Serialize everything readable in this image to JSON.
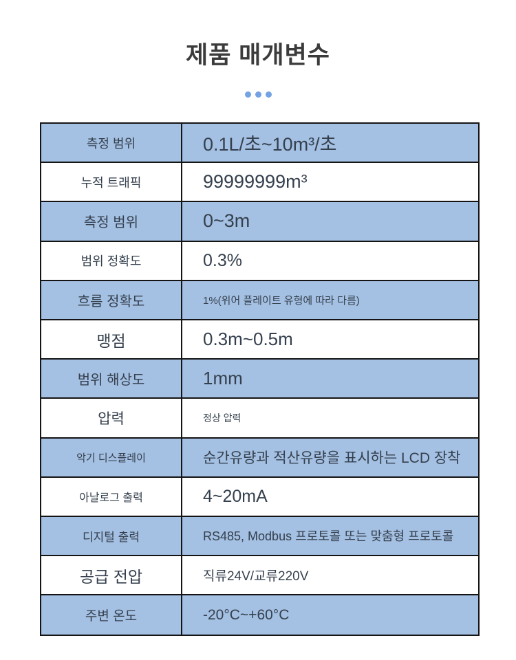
{
  "page": {
    "title": "제품 매개변수"
  },
  "colors": {
    "row_blue": "#a4c0e2",
    "row_white": "#ffffff",
    "border": "#141414",
    "text": "#35404e",
    "title": "#3b3b3b",
    "dots": "#74a3e3"
  },
  "table": {
    "rows": [
      {
        "label": "측정 범위",
        "value": "0.1L/초~10m³/초"
      },
      {
        "label": "누적 트래픽",
        "value": "99999999m³"
      },
      {
        "label": "측정 범위",
        "value": "0~3m"
      },
      {
        "label": "범위 정확도",
        "value": "0.3%"
      },
      {
        "label": "흐름 정확도",
        "value": "1%(위어 플레이트 유형에 따라 다름)"
      },
      {
        "label": "맹점",
        "value": "0.3m~0.5m"
      },
      {
        "label": "범위 해상도",
        "value": "1mm"
      },
      {
        "label": "압력",
        "value": "정상 압력"
      },
      {
        "label": "악기 디스플레이",
        "value": "순간유량과 적산유량을 표시하는 LCD 장착"
      },
      {
        "label": "아날로그 출력",
        "value": "4~20mA"
      },
      {
        "label": "디지털 출력",
        "value": "RS485, Modbus 프로토콜 또는 맞춤형 프로토콜"
      },
      {
        "label": "공급 전압",
        "value": "직류24V/교류220V"
      },
      {
        "label": "주변 온도",
        "value": "-20°C~+60°C"
      }
    ]
  }
}
